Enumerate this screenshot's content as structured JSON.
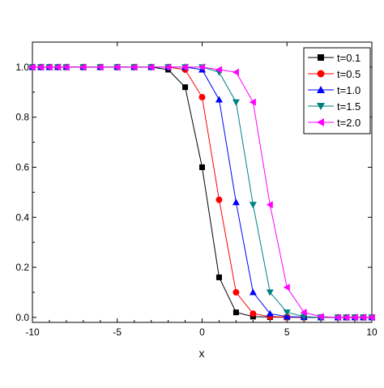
{
  "chart_data": {
    "type": "line",
    "title": "",
    "xlabel": "x",
    "ylabel": "",
    "xlim": [
      -10,
      10
    ],
    "ylim": [
      -0.02,
      1.1
    ],
    "x_ticks": [
      -10,
      -5,
      0,
      5,
      10
    ],
    "y_ticks": [
      0.0,
      0.2,
      0.4,
      0.6,
      0.8,
      1.0
    ],
    "x_tick_labels": [
      "-10",
      "-5",
      "0",
      "5",
      "10"
    ],
    "y_tick_labels": [
      "0.0",
      "0.2",
      "0.4",
      "0.6",
      "0.8",
      "1.0"
    ],
    "grid": false,
    "legend_position": "top-right",
    "x": [
      -10,
      -9.5,
      -9,
      -8.5,
      -8,
      -7,
      -6,
      -5,
      -4,
      -3,
      -2,
      -1,
      0,
      1,
      2,
      3,
      4,
      5,
      6,
      7,
      8,
      8.5,
      9,
      9.5,
      10
    ],
    "series": [
      {
        "name": "t=0.1",
        "color": "#000000",
        "marker": "square",
        "values": [
          1.0,
          1.0,
          1.0,
          1.0,
          1.0,
          1.0,
          1.0,
          1.0,
          1.0,
          1.0,
          0.99,
          0.92,
          0.6,
          0.16,
          0.02,
          0.003,
          0.001,
          0.0,
          0.0,
          0.0,
          0.0,
          0.0,
          0.0,
          0.0,
          0.0
        ]
      },
      {
        "name": "t=0.5",
        "color": "#ff0000",
        "marker": "circle",
        "values": [
          1.0,
          1.0,
          1.0,
          1.0,
          1.0,
          1.0,
          1.0,
          1.0,
          1.0,
          1.0,
          1.0,
          0.99,
          0.88,
          0.47,
          0.1,
          0.015,
          0.003,
          0.001,
          0.0,
          0.0,
          0.0,
          0.0,
          0.0,
          0.0,
          0.0
        ]
      },
      {
        "name": "t=1.0",
        "color": "#0000ff",
        "marker": "triangle-up",
        "values": [
          1.0,
          1.0,
          1.0,
          1.0,
          1.0,
          1.0,
          1.0,
          1.0,
          1.0,
          1.0,
          1.0,
          1.0,
          0.99,
          0.87,
          0.46,
          0.1,
          0.015,
          0.003,
          0.001,
          0.0,
          0.0,
          0.0,
          0.0,
          0.0,
          0.0
        ]
      },
      {
        "name": "t=1.5",
        "color": "#008080",
        "marker": "triangle-down",
        "values": [
          1.0,
          1.0,
          1.0,
          1.0,
          1.0,
          1.0,
          1.0,
          1.0,
          1.0,
          1.0,
          1.0,
          1.0,
          1.0,
          0.98,
          0.86,
          0.45,
          0.1,
          0.02,
          0.003,
          0.0,
          0.0,
          0.0,
          0.0,
          0.0,
          0.0
        ]
      },
      {
        "name": "t=2.0",
        "color": "#ff00ff",
        "marker": "triangle-left",
        "values": [
          1.0,
          1.0,
          1.0,
          1.0,
          1.0,
          1.0,
          1.0,
          1.0,
          1.0,
          1.0,
          1.0,
          1.0,
          1.0,
          0.99,
          0.98,
          0.86,
          0.45,
          0.12,
          0.02,
          0.003,
          0.0,
          0.0,
          0.0,
          0.0,
          0.0
        ]
      }
    ]
  }
}
